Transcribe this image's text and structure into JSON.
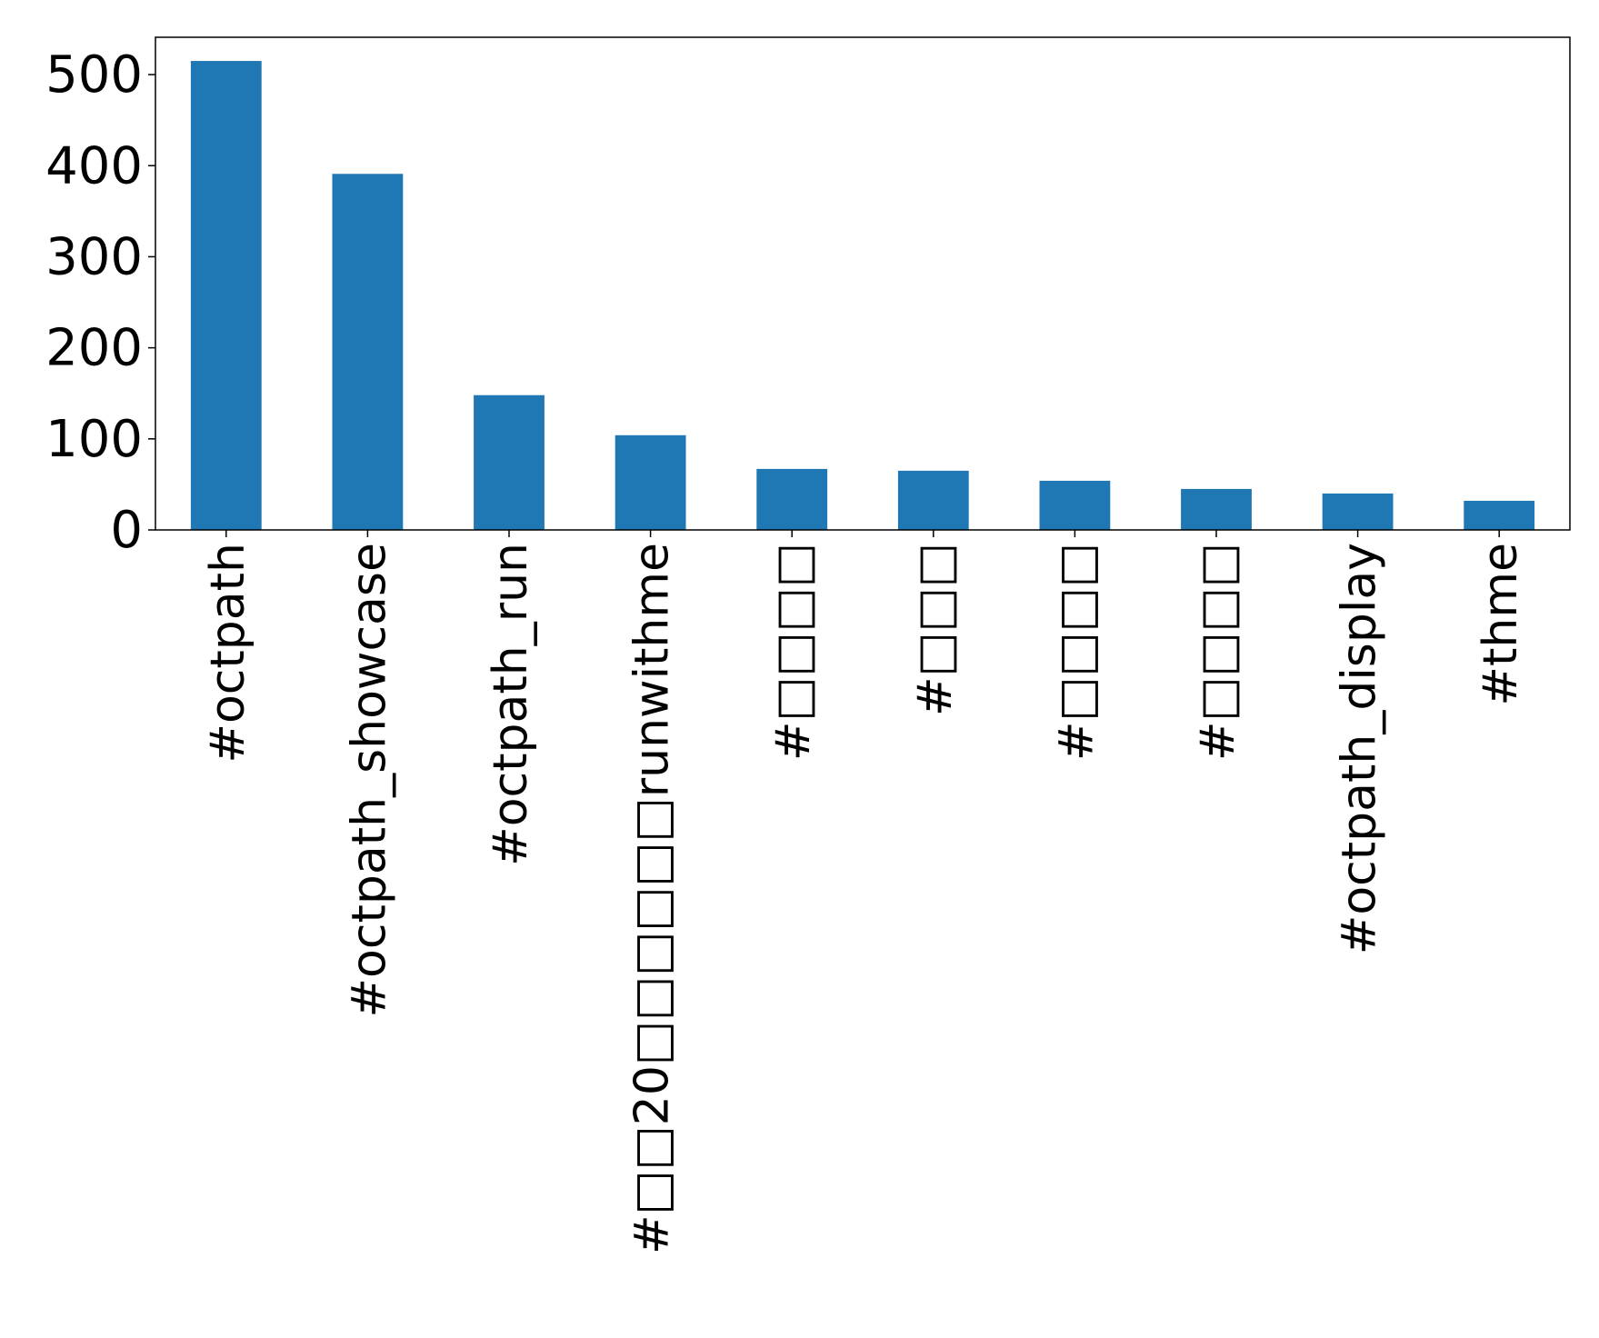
{
  "chart_data": {
    "type": "bar",
    "title": "",
    "xlabel": "",
    "ylabel": "",
    "categories": [
      "#octpath",
      "#octpath_showcase",
      "#octpath_run",
      "#□□20□□□□□□runwithme",
      "#□□□□",
      "#□□□",
      "#□□□□",
      "#□□□□",
      "#octpath_display",
      "#thme"
    ],
    "values": [
      515,
      391,
      148,
      104,
      67,
      65,
      54,
      45,
      40,
      32
    ],
    "ylim": [
      0,
      541
    ],
    "yticks": [
      0,
      100,
      200,
      300,
      400,
      500
    ],
    "grid": false,
    "legend": "none",
    "bar_color": "#1f77b4"
  }
}
